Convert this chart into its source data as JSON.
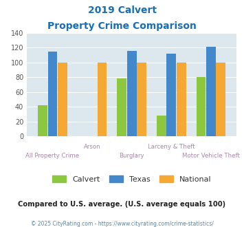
{
  "title_line1": "2019 Calvert",
  "title_line2": "Property Crime Comparison",
  "title_color": "#1a6eb5",
  "categories": [
    "All Property Crime",
    "Arson",
    "Burglary",
    "Larceny & Theft",
    "Motor Vehicle Theft"
  ],
  "calvert": [
    42,
    0,
    78,
    28,
    80
  ],
  "texas": [
    115,
    0,
    116,
    112,
    121
  ],
  "national": [
    100,
    100,
    100,
    100,
    100
  ],
  "calvert_color": "#8dc63f",
  "texas_color": "#4488cc",
  "national_color": "#f5a833",
  "plot_bg": "#dce8ee",
  "fig_bg": "#ffffff",
  "ylim": [
    0,
    140
  ],
  "yticks": [
    0,
    20,
    40,
    60,
    80,
    100,
    120,
    140
  ],
  "xlabels_top": [
    "",
    "Arson",
    "",
    "Larceny & Theft",
    ""
  ],
  "xlabels_bot": [
    "All Property Crime",
    "",
    "Burglary",
    "",
    "Motor Vehicle Theft"
  ],
  "xlabel_color": "#aa88aa",
  "note": "Compared to U.S. average. (U.S. average equals 100)",
  "note_color": "#222222",
  "footer": "© 2025 CityRating.com - https://www.cityrating.com/crime-statistics/",
  "footer_color": "#5588aa"
}
